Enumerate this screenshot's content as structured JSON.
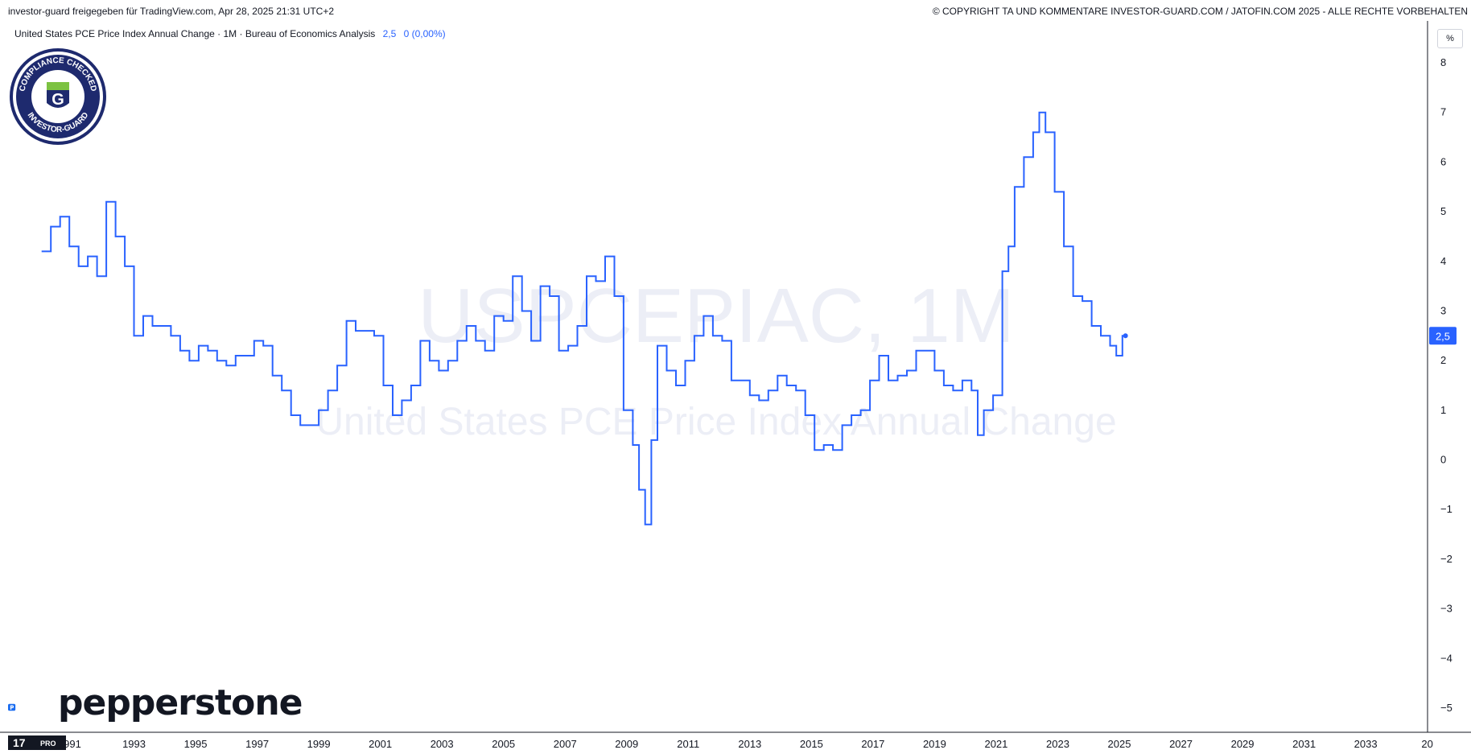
{
  "header": {
    "attribution": "investor-guard freigegeben für TradingView.com, Apr 28, 2025 21:31 UTC+2",
    "copyright": "© COPYRIGHT TA UND KOMMENTARE INVESTOR-GUARD.COM / JATOFIN.COM 2025 - ALLE RECHTE VORBEHALTEN"
  },
  "legend": {
    "title": "United States PCE Price Index Annual Change · 1M · Bureau of Economics Analysis",
    "value": "2,5",
    "change": "0 (0,00%)"
  },
  "watermark": {
    "symbol": "USPCEPIAC, 1M",
    "name": "United States PCE Price Index Annual Change"
  },
  "price_axis": {
    "unit": "%",
    "last_value_label": "2,5"
  },
  "badge": {
    "ring_text_top": "COMPLIANCE CHECKED",
    "ring_text_bottom": "INVESTOR-GUARD",
    "letter": "G"
  },
  "branding": {
    "broker": "pepperstone",
    "tv_logo_text": "17",
    "tv_pro": "PRO"
  },
  "colors": {
    "line": "#2962ff",
    "axis_text": "#131722",
    "watermark": "#eceef6",
    "background": "#ffffff"
  },
  "chart_data": {
    "type": "line",
    "title": "United States PCE Price Index Annual Change",
    "ylabel": "%",
    "ylim": [
      -5.5,
      8.5
    ],
    "y_ticks": [
      8,
      7,
      6,
      5,
      4,
      3,
      2,
      1,
      0,
      -1,
      -2,
      -3,
      -4,
      -5
    ],
    "x_tick_labels": [
      "991",
      "1993",
      "1995",
      "1997",
      "1999",
      "2001",
      "2003",
      "2005",
      "2007",
      "2009",
      "2011",
      "2013",
      "2015",
      "2017",
      "2019",
      "2021",
      "2023",
      "2025",
      "2027",
      "2029",
      "2031",
      "2033",
      "20"
    ],
    "xlim": [
      1990.0,
      2036.0
    ],
    "series": [
      {
        "color": "#2962ff",
        "x": [
          1990.0,
          1990.3,
          1990.6,
          1990.9,
          1991.2,
          1991.5,
          1991.8,
          1992.1,
          1992.4,
          1992.7,
          1993.0,
          1993.3,
          1993.6,
          1993.9,
          1994.2,
          1994.5,
          1994.8,
          1995.1,
          1995.4,
          1995.7,
          1996.0,
          1996.3,
          1996.6,
          1996.9,
          1997.2,
          1997.5,
          1997.8,
          1998.1,
          1998.4,
          1998.7,
          1999.0,
          1999.3,
          1999.6,
          1999.9,
          2000.2,
          2000.5,
          2000.8,
          2001.1,
          2001.4,
          2001.7,
          2002.0,
          2002.3,
          2002.6,
          2002.9,
          2003.2,
          2003.5,
          2003.8,
          2004.1,
          2004.4,
          2004.7,
          2005.0,
          2005.3,
          2005.6,
          2005.9,
          2006.2,
          2006.5,
          2006.8,
          2007.1,
          2007.4,
          2007.7,
          2008.0,
          2008.3,
          2008.6,
          2008.9,
          2009.2,
          2009.4,
          2009.6,
          2009.8,
          2010.0,
          2010.3,
          2010.6,
          2010.9,
          2011.2,
          2011.5,
          2011.8,
          2012.1,
          2012.4,
          2012.7,
          2013.0,
          2013.3,
          2013.6,
          2013.9,
          2014.2,
          2014.5,
          2014.8,
          2015.1,
          2015.4,
          2015.7,
          2016.0,
          2016.3,
          2016.6,
          2016.9,
          2017.2,
          2017.5,
          2017.8,
          2018.1,
          2018.4,
          2018.7,
          2019.0,
          2019.3,
          2019.6,
          2019.9,
          2020.2,
          2020.4,
          2020.6,
          2020.9,
          2021.2,
          2021.4,
          2021.6,
          2021.9,
          2022.2,
          2022.4,
          2022.6,
          2022.9,
          2023.2,
          2023.5,
          2023.8,
          2024.1,
          2024.4,
          2024.7,
          2024.9,
          2025.1,
          2025.2
        ],
        "values": [
          4.2,
          4.7,
          4.9,
          4.3,
          3.9,
          4.1,
          3.7,
          5.2,
          4.5,
          3.9,
          2.5,
          2.9,
          2.7,
          2.7,
          2.5,
          2.2,
          2.0,
          2.3,
          2.2,
          2.0,
          1.9,
          2.1,
          2.1,
          2.4,
          2.3,
          1.7,
          1.4,
          0.9,
          0.7,
          0.7,
          1.0,
          1.4,
          1.9,
          2.8,
          2.6,
          2.6,
          2.5,
          1.5,
          0.9,
          1.2,
          1.5,
          2.4,
          2.0,
          1.8,
          2.0,
          2.4,
          2.7,
          2.4,
          2.2,
          2.9,
          2.8,
          3.7,
          3.0,
          2.4,
          3.5,
          3.3,
          2.2,
          2.3,
          2.7,
          3.7,
          3.6,
          4.1,
          3.3,
          1.0,
          0.3,
          -0.6,
          -1.3,
          0.4,
          2.3,
          1.8,
          1.5,
          2.0,
          2.5,
          2.9,
          2.5,
          2.4,
          1.6,
          1.6,
          1.3,
          1.2,
          1.4,
          1.7,
          1.5,
          1.4,
          0.9,
          0.2,
          0.3,
          0.2,
          0.7,
          0.9,
          1.0,
          1.6,
          2.1,
          1.6,
          1.7,
          1.8,
          2.2,
          2.2,
          1.8,
          1.5,
          1.4,
          1.6,
          1.4,
          0.5,
          1.0,
          1.3,
          3.8,
          4.3,
          5.5,
          6.1,
          6.6,
          7.0,
          6.6,
          5.4,
          4.3,
          3.3,
          3.2,
          2.7,
          2.5,
          2.3,
          2.1,
          2.5,
          2.5
        ]
      }
    ]
  }
}
